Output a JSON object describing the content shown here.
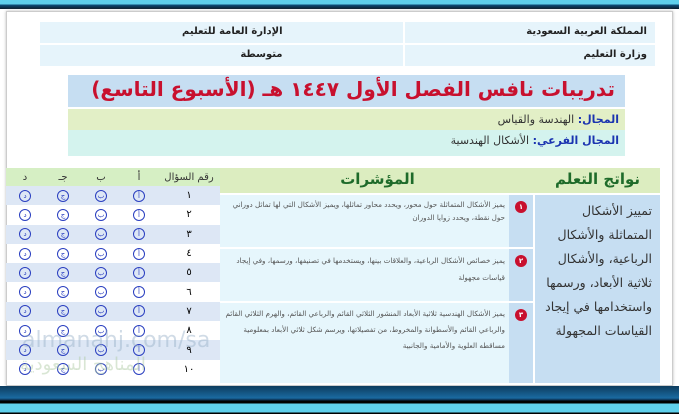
{
  "header": {
    "country": "المملكة العربية السعودية",
    "directorate": "الإدارة العامة للتعليم",
    "ministry": "وزارة التعليم",
    "stage": "متوسطة"
  },
  "title": "تدريبات نافس الفصل الأول ١٤٤٧ هـ (الأسبوع التاسع)",
  "domain": {
    "label": "المجال:",
    "value": "الهندسة والقياس"
  },
  "subdomain": {
    "label": "المجال الفرعي:",
    "value": "الأشكال الهندسية"
  },
  "answer_grid": {
    "headers": [
      "رقم السؤال",
      "أ",
      "ب",
      "جـ",
      "د"
    ],
    "choice_marks": [
      "أ",
      "ب",
      "ج",
      "د"
    ],
    "questions": [
      "١",
      "٢",
      "٣",
      "٤",
      "٥",
      "٦",
      "٧",
      "٨",
      "٩",
      "١٠"
    ]
  },
  "outcomes_header": "نواتج التعلم",
  "indicators_header": "المؤشرات",
  "outcome": "تمييز الأشكال المتماثلة والأشكال الرباعية، والأشكال ثلاثية الأبعاد، ورسمها واستخدامها في إيجاد القياسات المجهولة",
  "indicators": [
    {
      "num": "١",
      "text": "يميز الأشكال المتماثلة حول محور، ويحدد محاور تماثلها، ويميز الأشكال التي لها تماثل دوراني حول نقطة، ويحدد زوايا الدوران"
    },
    {
      "num": "٢",
      "text": "يميز خصائص الأشكال الرباعية، والعلاقات بينها، ويستخدمها في تصنيفها، ورسمها، وفي إيجاد قياسات مجهولة"
    },
    {
      "num": "٣",
      "text": "يميز الأشكال الهندسية ثلاثية الأبعاد المنشور الثلاثي القائم والرباعي القائم، والهرم الثلاثي القائم والرباعي القائم والأسطوانة والمخروط، من تفصيلاتها، ويرسم شكل ثلاثي الأبعاد بمعلومية مساقطه العلوية والأمامية والجانبية"
    }
  ],
  "watermark": {
    "url": "almanahj.com/sa",
    "arabic": "المناهج السعودية"
  },
  "colors": {
    "title": "#c8102e",
    "label": "#1a33b0",
    "choice": "#2a3fc0"
  }
}
